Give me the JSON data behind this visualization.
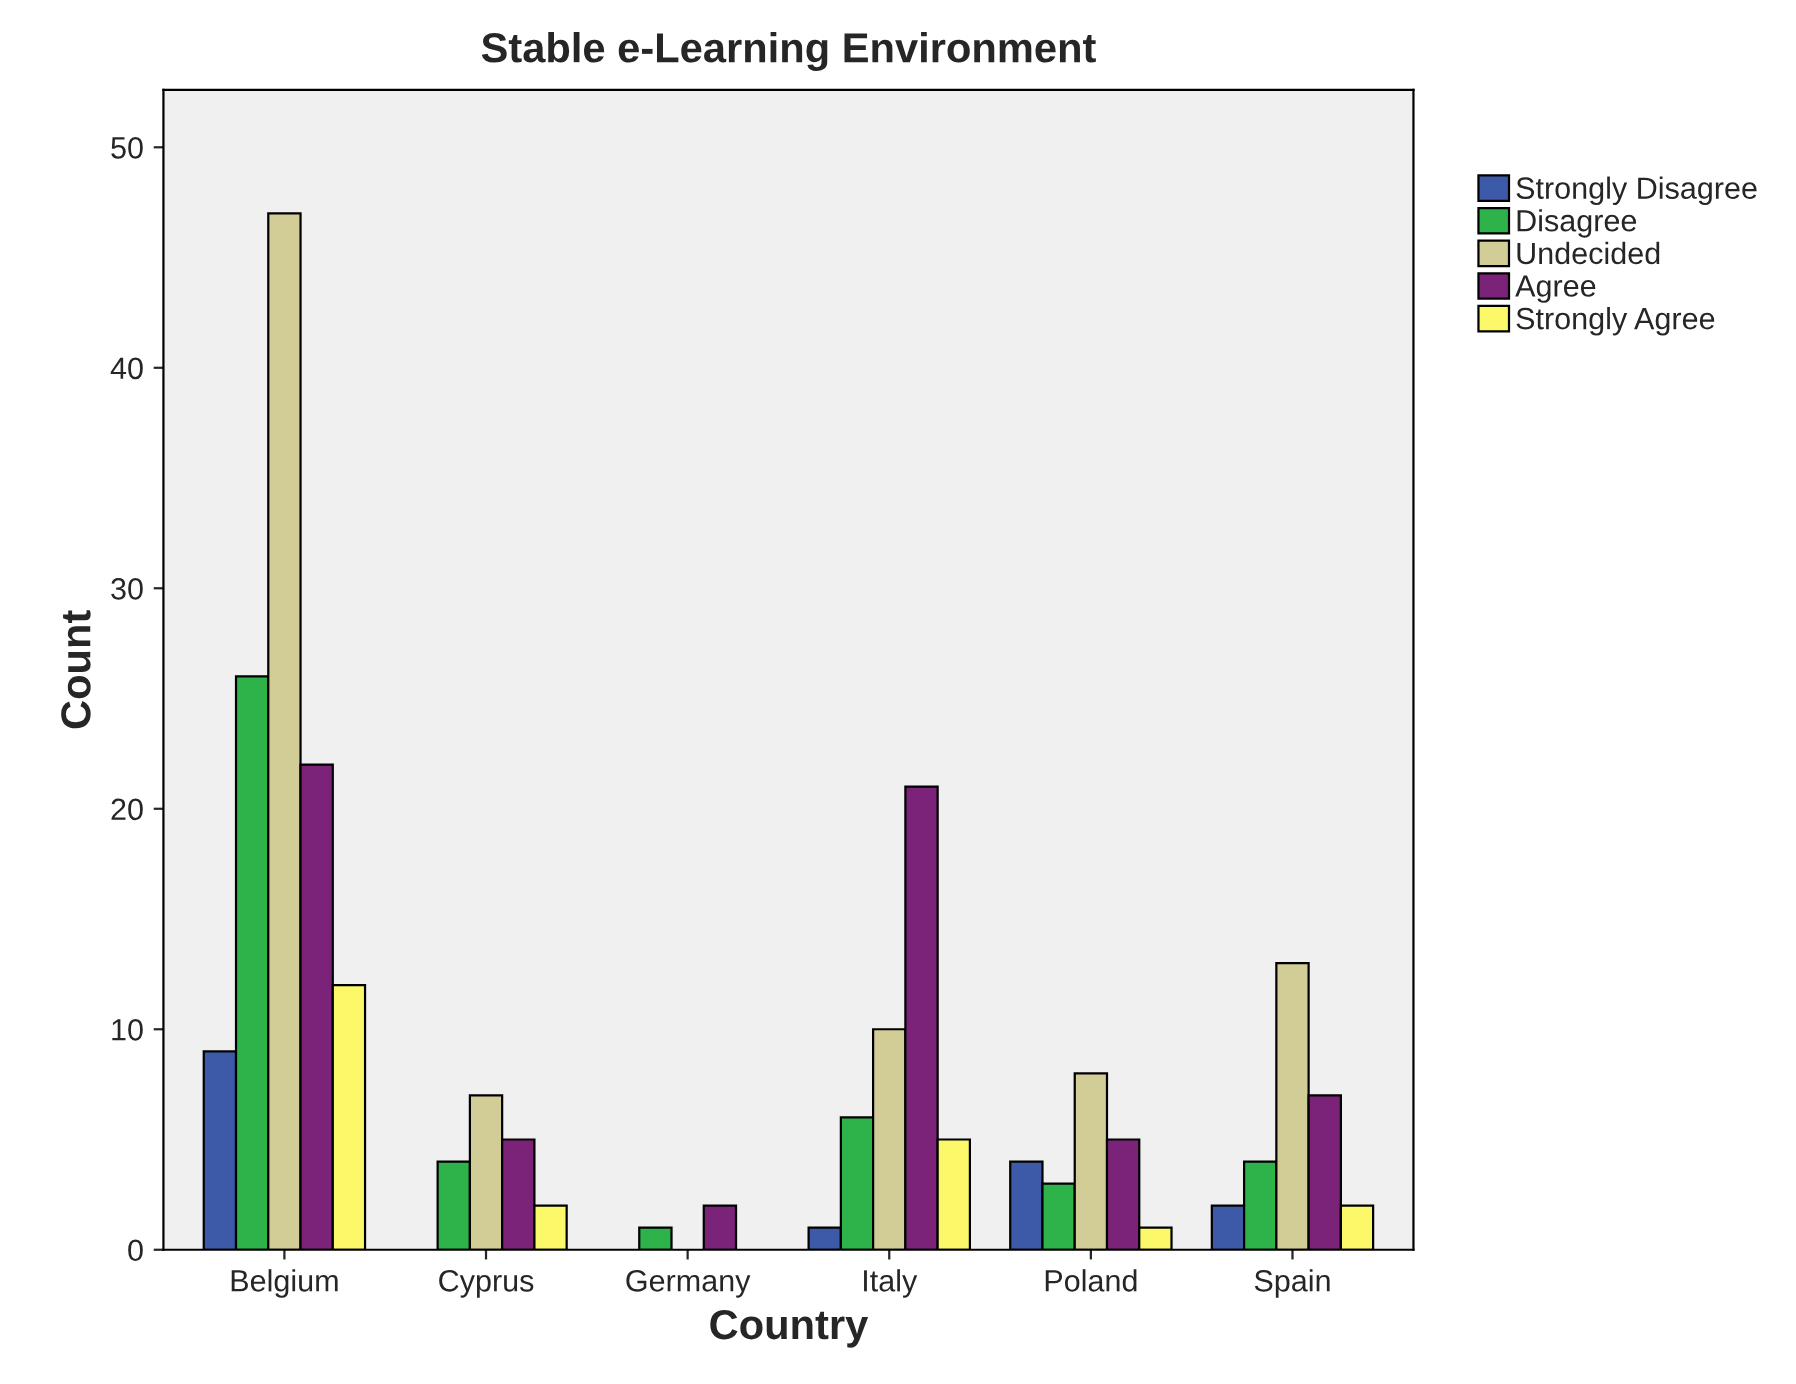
{
  "chart_data": {
    "type": "bar",
    "title": "Stable e-Learning Environment",
    "xlabel": "Country",
    "ylabel": "Count",
    "categories": [
      "Belgium",
      "Cyprus",
      "Germany",
      "Italy",
      "Poland",
      "Spain"
    ],
    "series": [
      {
        "name": "Strongly Disagree",
        "color": "#3d5aa8",
        "values": [
          9,
          null,
          null,
          1,
          4,
          2
        ]
      },
      {
        "name": "Disagree",
        "color": "#2eb34a",
        "values": [
          26,
          4,
          1,
          6,
          3,
          4
        ]
      },
      {
        "name": "Undecided",
        "color": "#d2cc96",
        "values": [
          47,
          7,
          null,
          10,
          8,
          13
        ]
      },
      {
        "name": "Agree",
        "color": "#7b2379",
        "values": [
          22,
          5,
          2,
          21,
          5,
          7
        ]
      },
      {
        "name": "Strongly Agree",
        "color": "#fbf96a",
        "values": [
          12,
          2,
          null,
          5,
          1,
          2
        ]
      }
    ],
    "ylim": [
      0,
      52.6
    ],
    "yticks": [
      0,
      10,
      20,
      30,
      40,
      50
    ],
    "grid": false,
    "legend": "right"
  }
}
